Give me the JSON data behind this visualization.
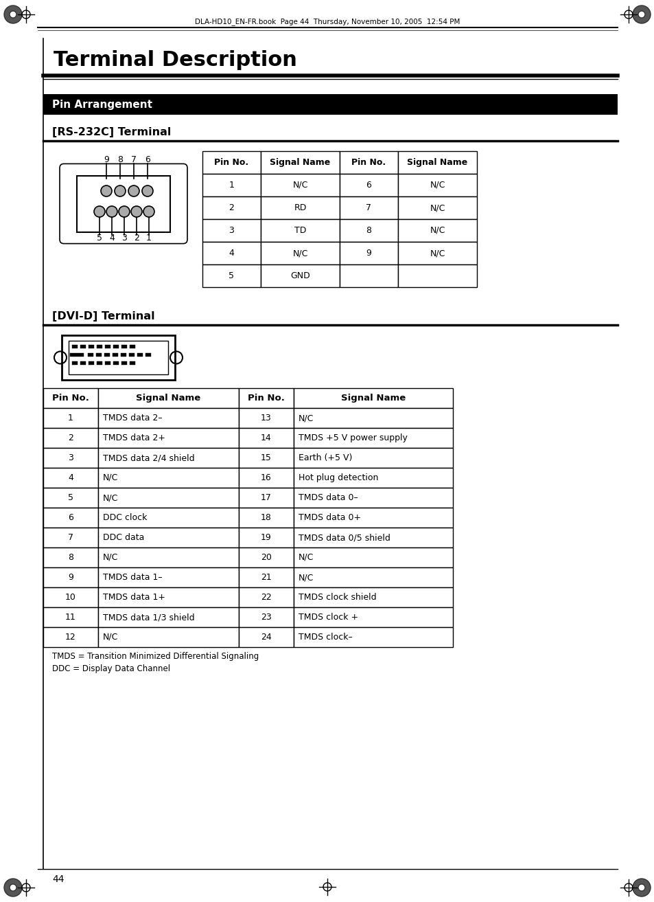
{
  "page_title": "Terminal Description",
  "header_text": "DLA-HD10_EN-FR.book  Page 44  Thursday, November 10, 2005  12:54 PM",
  "section_title": "Pin Arrangement",
  "rs232_title": "[RS-232C] Terminal",
  "dvi_title": "[DVI-D] Terminal",
  "page_number": "44",
  "rs232_headers": [
    "Pin No.",
    "Signal Name",
    "Pin No.",
    "Signal Name"
  ],
  "rs232_data": [
    [
      "1",
      "N/C",
      "6",
      "N/C"
    ],
    [
      "2",
      "RD",
      "7",
      "N/C"
    ],
    [
      "3",
      "TD",
      "8",
      "N/C"
    ],
    [
      "4",
      "N/C",
      "9",
      "N/C"
    ],
    [
      "5",
      "GND",
      "",
      ""
    ]
  ],
  "dvi_headers": [
    "Pin No.",
    "Signal Name",
    "Pin No.",
    "Signal Name"
  ],
  "dvi_data": [
    [
      "1",
      "TMDS data 2–",
      "13",
      "N/C"
    ],
    [
      "2",
      "TMDS data 2+",
      "14",
      "TMDS +5 V power supply"
    ],
    [
      "3",
      "TMDS data 2/4 shield",
      "15",
      "Earth (+5 V)"
    ],
    [
      "4",
      "N/C",
      "16",
      "Hot plug detection"
    ],
    [
      "5",
      "N/C",
      "17",
      "TMDS data 0–"
    ],
    [
      "6",
      "DDC clock",
      "18",
      "TMDS data 0+"
    ],
    [
      "7",
      "DDC data",
      "19",
      "TMDS data 0/5 shield"
    ],
    [
      "8",
      "N/C",
      "20",
      "N/C"
    ],
    [
      "9",
      "TMDS data 1–",
      "21",
      "N/C"
    ],
    [
      "10",
      "TMDS data 1+",
      "22",
      "TMDS clock shield"
    ],
    [
      "11",
      "TMDS data 1/3 shield",
      "23",
      "TMDS clock +"
    ],
    [
      "12",
      "N/C",
      "24",
      "TMDS clock–"
    ]
  ],
  "footnote1": "TMDS = Transition Minimized Differential Signaling",
  "footnote2": "DDC = Display Data Channel",
  "bg_color": "#ffffff",
  "section_bg": "#000000",
  "section_fg": "#ffffff"
}
